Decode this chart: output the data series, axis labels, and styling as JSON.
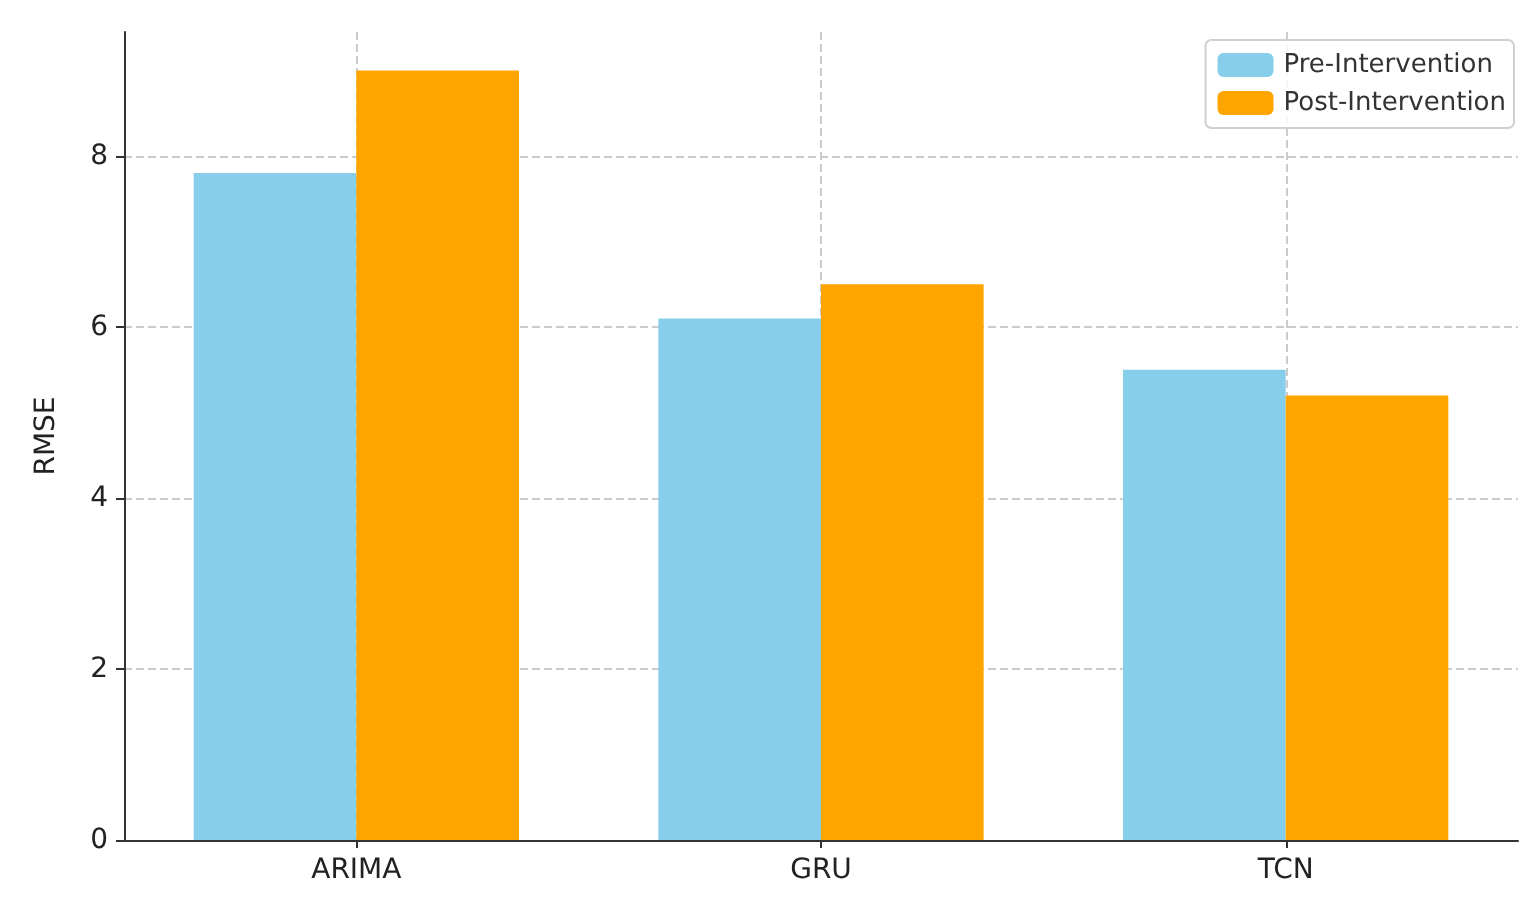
{
  "chart_data": {
    "type": "bar",
    "ylabel": "RMSE",
    "categories": [
      "ARIMA",
      "GRU",
      "TCN"
    ],
    "series": [
      {
        "name": "Pre-Intervention",
        "color": "#87ceeb",
        "values": [
          7.8,
          6.1,
          5.5
        ]
      },
      {
        "name": "Post-Intervention",
        "color": "#ffa500",
        "values": [
          9.0,
          6.5,
          5.2
        ]
      }
    ],
    "ylim": [
      0,
      9.45
    ],
    "yticks": [
      0,
      2,
      4,
      6,
      8
    ],
    "grid": true,
    "legend": "top right"
  }
}
